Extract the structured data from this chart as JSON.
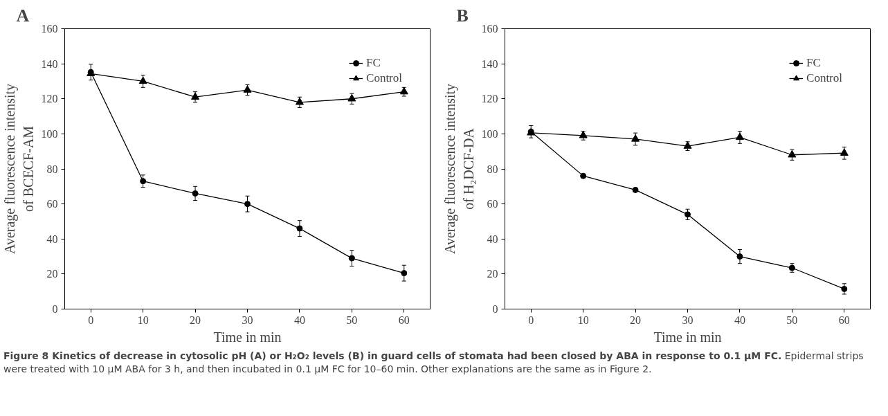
{
  "chart_data": [
    {
      "type": "line",
      "title": "A",
      "xlabel": "Time in min",
      "ylabel": "Average fluorescence intensity\nof BCECF-AM",
      "categories": [
        "0",
        "10",
        "20",
        "30",
        "40",
        "50",
        "60"
      ],
      "ylim": [
        0,
        160
      ],
      "yticks": [
        0,
        20,
        40,
        60,
        80,
        100,
        120,
        140,
        160
      ],
      "grid": false,
      "legend": "top right",
      "series": [
        {
          "name": "FC",
          "color": "#000000",
          "marker": "circle",
          "values": [
            135.2,
            73,
            66,
            60,
            46,
            29,
            20.5
          ],
          "errors": [
            4.5,
            3.5,
            4,
            4.5,
            4.5,
            4.5,
            4.5
          ]
        },
        {
          "name": "Control",
          "color": "#000000",
          "marker": "triangle",
          "values": [
            134.4,
            130,
            121,
            125,
            118,
            120,
            124
          ],
          "errors": [
            null,
            3.5,
            3,
            3,
            3,
            3,
            2.5
          ]
        }
      ]
    },
    {
      "type": "line",
      "title": "B",
      "xlabel": "Time in min",
      "ylabel": "Average fluorescence intensity\nof H₂DCF-DA",
      "categories": [
        "0",
        "10",
        "20",
        "30",
        "40",
        "50",
        "60"
      ],
      "ylim": [
        0,
        160
      ],
      "yticks": [
        0,
        20,
        40,
        60,
        80,
        100,
        120,
        140,
        160
      ],
      "grid": false,
      "legend": "top right",
      "series": [
        {
          "name": "FC",
          "color": "#000000",
          "marker": "circle",
          "values": [
            101.2,
            76,
            68,
            54,
            30,
            23.5,
            11.5
          ],
          "errors": [
            3.5,
            null,
            null,
            3,
            4,
            2.5,
            3
          ]
        },
        {
          "name": "Control",
          "color": "#000000",
          "marker": "triangle",
          "values": [
            100.6,
            99,
            97,
            93,
            98,
            88,
            89
          ],
          "errors": [
            null,
            2.5,
            3.5,
            2.5,
            3.5,
            3,
            3.5
          ]
        }
      ],
      "annotations": [
        "Figure 8 Kinetics of decrease in cytosolic pH (A) or H₂O₂ levels (B) in guard cells of stomata had been closed by ABA in response to 0.1 µM FC.",
        "Epidermal strips were treated with 10 µM ABA for 3 h, and then incubated in 0.1 µM FC for 10–60 min. Other explanations are the same as in Figure 2."
      ]
    }
  ]
}
